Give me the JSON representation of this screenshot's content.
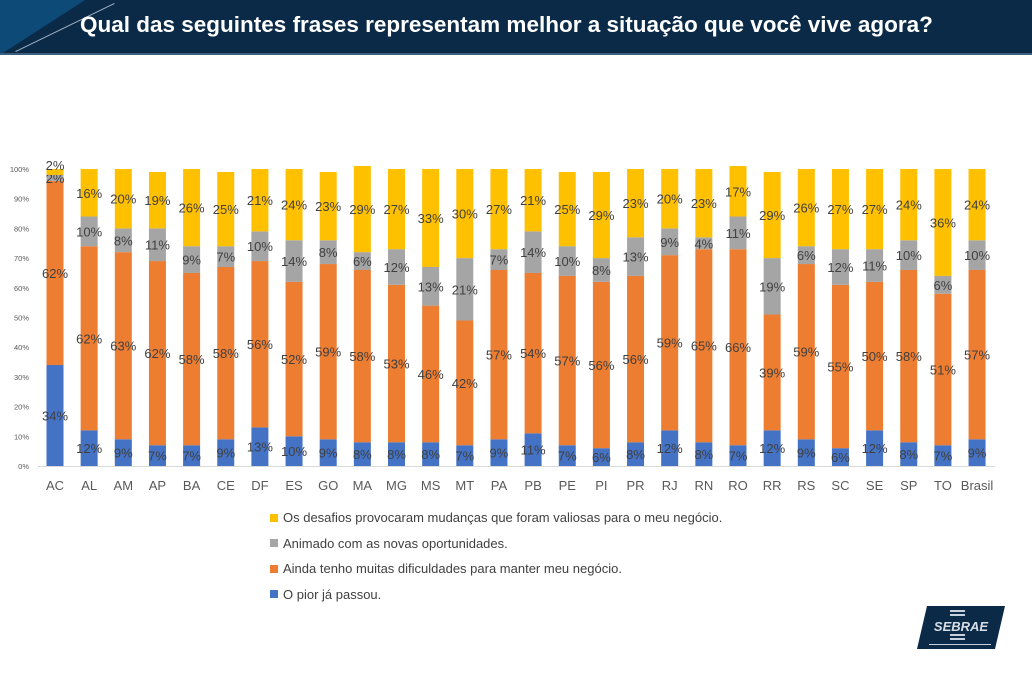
{
  "header": {
    "title": "Qual das seguintes frases representam melhor a situação que você vive agora?"
  },
  "logo": {
    "text": "SEBRAE"
  },
  "chart_data": {
    "type": "bar",
    "stacked": true,
    "percent": true,
    "title": "",
    "xlabel": "",
    "ylabel": "",
    "ylim": [
      0,
      100
    ],
    "yticks": [
      "0%",
      "10%",
      "20%",
      "30%",
      "40%",
      "50%",
      "60%",
      "70%",
      "80%",
      "90%",
      "100%"
    ],
    "grid": false,
    "legend_position": "bottom",
    "categories": [
      "AC",
      "AL",
      "AM",
      "AP",
      "BA",
      "CE",
      "DF",
      "ES",
      "GO",
      "MA",
      "MG",
      "MS",
      "MT",
      "PA",
      "PB",
      "PE",
      "PI",
      "PR",
      "RJ",
      "RN",
      "RO",
      "RR",
      "RS",
      "SC",
      "SE",
      "SP",
      "TO",
      "Brasil"
    ],
    "series": [
      {
        "name": "O pior já passou.",
        "color": "#4472c4",
        "values": [
          34,
          12,
          9,
          7,
          7,
          9,
          13,
          10,
          9,
          8,
          8,
          8,
          7,
          9,
          11,
          7,
          6,
          8,
          12,
          8,
          7,
          12,
          9,
          6,
          12,
          8,
          7,
          9
        ]
      },
      {
        "name": "Ainda tenho muitas dificuldades para manter meu negócio.",
        "color": "#ed7d31",
        "values": [
          62,
          62,
          63,
          62,
          58,
          58,
          56,
          52,
          59,
          58,
          53,
          46,
          42,
          57,
          54,
          57,
          56,
          56,
          59,
          65,
          66,
          39,
          59,
          55,
          50,
          58,
          51,
          57
        ]
      },
      {
        "name": "Animado com as novas oportunidades.",
        "color": "#a5a5a5",
        "values": [
          2,
          10,
          8,
          11,
          9,
          7,
          10,
          14,
          8,
          6,
          12,
          13,
          21,
          7,
          14,
          10,
          8,
          13,
          9,
          4,
          11,
          19,
          6,
          12,
          11,
          10,
          6,
          10
        ]
      },
      {
        "name": "Os desafios provocaram mudanças que foram valiosas para o meu negócio.",
        "color": "#ffc000",
        "values": [
          2,
          16,
          20,
          19,
          26,
          25,
          21,
          24,
          23,
          29,
          27,
          33,
          30,
          27,
          21,
          25,
          29,
          23,
          20,
          23,
          17,
          29,
          26,
          27,
          27,
          24,
          36,
          24
        ]
      }
    ]
  }
}
